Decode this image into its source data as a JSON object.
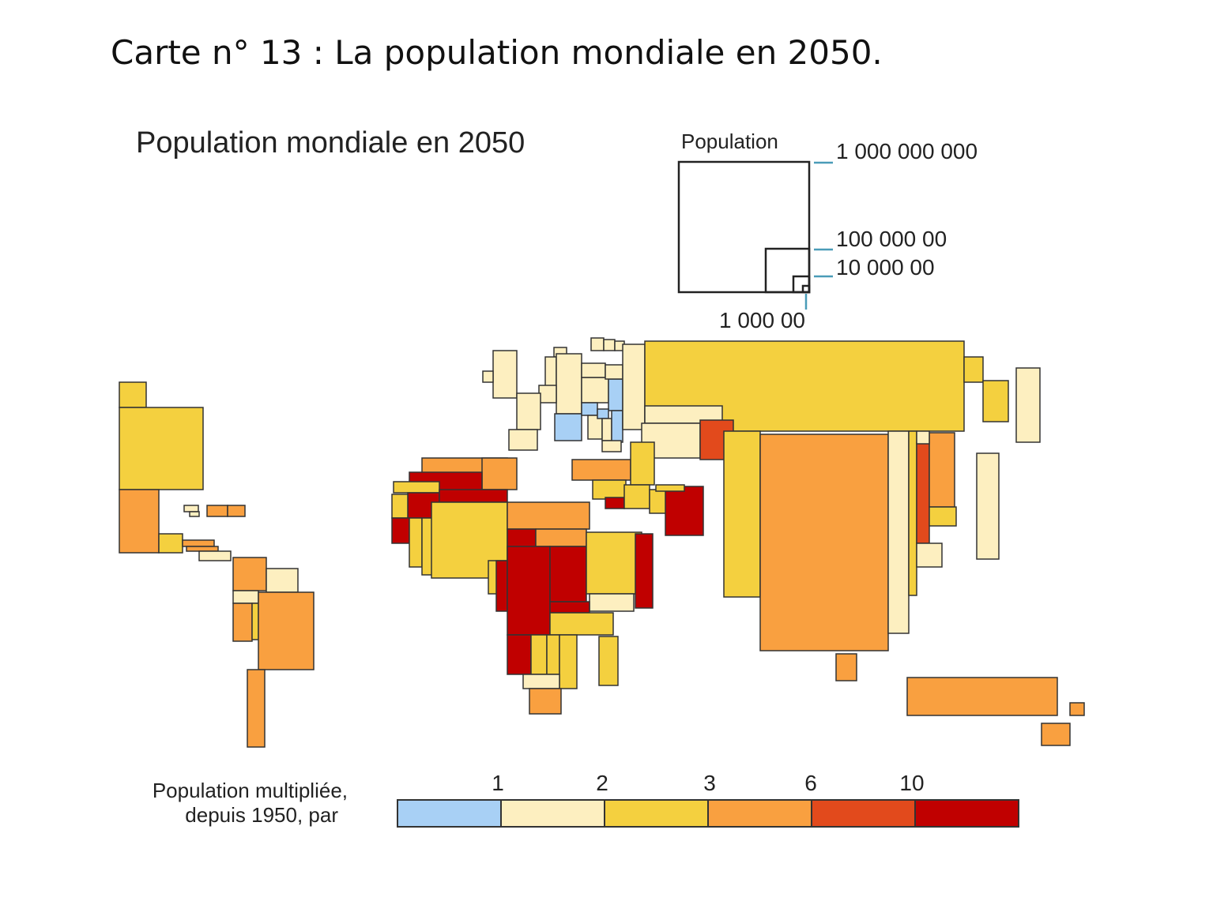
{
  "page_title": "Carte n° 13 : La population mondiale en 2050.",
  "map_title": "Population mondiale en 2050",
  "size_legend": {
    "title": "Population",
    "labels": [
      "1 000 000 000",
      "100 000 00",
      "10 000 00",
      "1 000 00"
    ]
  },
  "color_legend": {
    "title_line1": "Population multipliée,",
    "title_line2": "depuis 1950, par",
    "ticks": [
      "1",
      "2",
      "3",
      "6",
      "10"
    ],
    "colors": [
      "#a8d0f5",
      "#fdefc0",
      "#f4d03f",
      "#f9a040",
      "#e24a1c",
      "#c00000"
    ]
  },
  "palette": {
    "blue": "#a8d0f5",
    "cream": "#fdefc0",
    "yellow": "#f4d03f",
    "orange": "#f9a040",
    "red_orange": "#e24a1c",
    "dark_red": "#c00000"
  }
}
